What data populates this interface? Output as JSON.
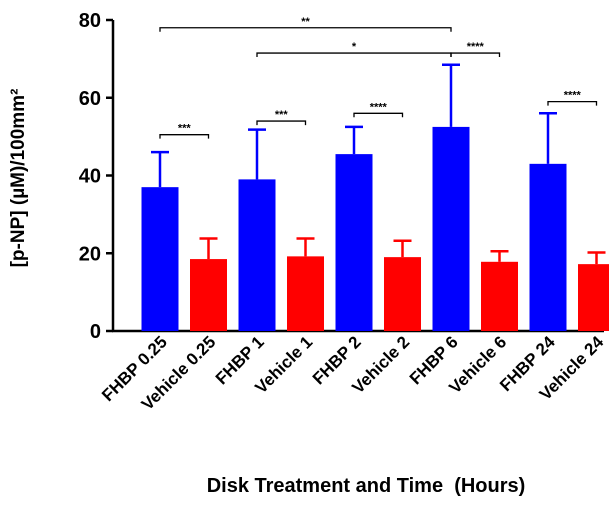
{
  "chart_data": {
    "type": "bar",
    "title": "",
    "xlabel": "Disk Treatment and Time  (Hours)",
    "ylabel": "[p-NP] (µM)/100mm²",
    "ylim": [
      0,
      80
    ],
    "yticks": [
      "0",
      "20",
      "40",
      "60",
      "80"
    ],
    "grid": false,
    "categories": [
      "FHBP 0.25",
      "Vehicle 0.25",
      "FHBP 1",
      "Vehicle 1",
      "FHBP 2",
      "Vehicle 2",
      "FHBP 6",
      "Vehicle 6",
      "FHBP 24",
      "Vehicle 24"
    ],
    "values": [
      37,
      18.5,
      39,
      19.2,
      45.5,
      19,
      52.5,
      17.8,
      43,
      17.2
    ],
    "error_upper": [
      46,
      23.8,
      51.8,
      23.8,
      52.5,
      23.2,
      68.5,
      20.5,
      56,
      20.2
    ],
    "bar_colors": [
      "#0000ff",
      "#ff0000",
      "#0000ff",
      "#ff0000",
      "#0000ff",
      "#ff0000",
      "#0000ff",
      "#ff0000",
      "#0000ff",
      "#ff0000"
    ],
    "significance": [
      {
        "from": 0,
        "to": 6,
        "label": "**",
        "y": 78
      },
      {
        "from": 2,
        "to": 6,
        "label": "*",
        "y": 71.5
      },
      {
        "from": 6,
        "to": 7,
        "label": "****",
        "y": 71.5
      },
      {
        "from": 0,
        "to": 1,
        "label": "***",
        "y": 50.5
      },
      {
        "from": 2,
        "to": 3,
        "label": "***",
        "y": 54
      },
      {
        "from": 4,
        "to": 5,
        "label": "****",
        "y": 56
      },
      {
        "from": 8,
        "to": 9,
        "label": "****",
        "y": 59
      }
    ]
  }
}
